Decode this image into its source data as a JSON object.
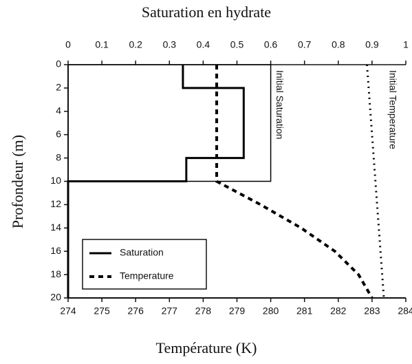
{
  "chart_data": {
    "type": "line",
    "x2_label": "Saturation en hydrate",
    "xlabel": "Température (K)",
    "ylabel": "Profondeur (m)",
    "xlim": [
      274,
      284
    ],
    "xticks": [
      274,
      275,
      276,
      277,
      278,
      279,
      280,
      281,
      282,
      283,
      284
    ],
    "x2lim": [
      0,
      1
    ],
    "x2ticks": [
      0,
      0.1,
      0.2,
      0.3,
      0.4,
      0.5,
      0.6,
      0.7,
      0.8,
      0.9,
      1
    ],
    "ylim": [
      0,
      20
    ],
    "yticks": [
      0,
      2,
      4,
      6,
      8,
      10,
      12,
      14,
      16,
      18,
      20
    ],
    "y_inverted": true,
    "legend": "lower left",
    "series": [
      {
        "name": "Saturation",
        "axis": "x2",
        "style": "solid",
        "color": "#000000",
        "x": [
          0.34,
          0.34,
          0.52,
          0.52,
          0.35,
          0.35,
          0,
          0
        ],
        "y": [
          0,
          2,
          2,
          8,
          8,
          10,
          10,
          20
        ]
      },
      {
        "name": "Temperature",
        "axis": "x",
        "style": "dashed",
        "color": "#000000",
        "x": [
          278.4,
          278.4,
          279.7,
          280.9,
          281.9,
          282.6,
          283.0
        ],
        "y": [
          0,
          10,
          12,
          14,
          16,
          18,
          20
        ]
      }
    ],
    "reference_lines": [
      {
        "label": "Initial Saturation",
        "axis": "x2",
        "style": "thin",
        "color": "#000000",
        "x": [
          0,
          0.6,
          0.6,
          0
        ],
        "y": [
          0,
          0,
          10,
          10
        ]
      },
      {
        "label": "Initial Temperature",
        "axis": "x",
        "style": "dotted",
        "color": "#000000",
        "x": [
          282.85,
          283.35
        ],
        "y": [
          0,
          20
        ]
      }
    ]
  }
}
